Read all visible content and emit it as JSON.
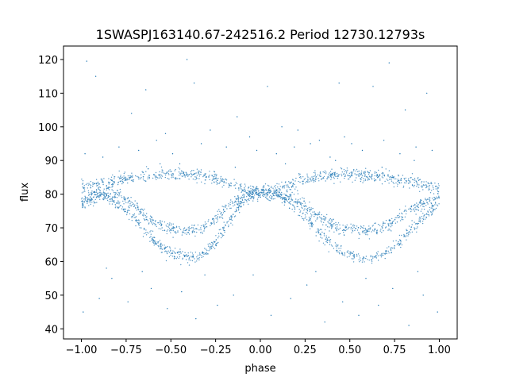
{
  "chart_data": {
    "type": "scatter",
    "title": "1SWASPJ163140.67-242516.2 Period 12730.12793s",
    "xlabel": "phase",
    "ylabel": "flux",
    "xlim": [
      -1.1,
      1.1
    ],
    "ylim": [
      37,
      124
    ],
    "xticks": [
      -1.0,
      -0.75,
      -0.5,
      -0.25,
      0.0,
      0.25,
      0.5,
      0.75,
      1.0
    ],
    "xtick_labels": [
      "−1.00",
      "−0.75",
      "−0.50",
      "−0.25",
      "0.00",
      "0.25",
      "0.50",
      "0.75",
      "1.00"
    ],
    "yticks": [
      40,
      50,
      60,
      70,
      80,
      90,
      100,
      110,
      120
    ],
    "ytick_labels": [
      "40",
      "50",
      "60",
      "70",
      "80",
      "90",
      "100",
      "110",
      "120"
    ],
    "grid": false,
    "marker_color": "#1f77b4",
    "series": [
      {
        "x": [
          -1.0,
          -0.95,
          -0.9,
          -0.85,
          -0.8,
          -0.75,
          -0.7,
          -0.65,
          -0.6,
          -0.55,
          -0.5,
          -0.45,
          -0.4,
          -0.35,
          -0.3,
          -0.25,
          -0.2,
          -0.15,
          -0.1,
          -0.05,
          0.0,
          0.05,
          0.1,
          0.15,
          0.2,
          0.25,
          0.3,
          0.35,
          0.4,
          0.45,
          0.5,
          0.55,
          0.6,
          0.65,
          0.7,
          0.75,
          0.8,
          0.85,
          0.9,
          0.95,
          1.0
        ],
        "y": [
          82,
          82.5,
          83,
          83.5,
          84,
          84.5,
          85,
          85.3,
          85.5,
          85.7,
          85.8,
          85.8,
          85.7,
          85.5,
          85.2,
          84.5,
          83.5,
          82.5,
          81.5,
          81,
          80.5,
          81,
          81.5,
          82.5,
          83.5,
          84.5,
          85.2,
          85.5,
          85.7,
          85.8,
          85.8,
          85.7,
          85.5,
          85.3,
          85,
          84.5,
          84,
          83.5,
          83,
          82.5,
          82
        ]
      },
      {
        "x": [
          -1.0,
          -0.95,
          -0.9,
          -0.85,
          -0.8,
          -0.75,
          -0.7,
          -0.65,
          -0.6,
          -0.55,
          -0.5,
          -0.45,
          -0.4,
          -0.35,
          -0.3,
          -0.25,
          -0.2,
          -0.15,
          -0.1,
          -0.05,
          0.0,
          0.05,
          0.1,
          0.15,
          0.2,
          0.25,
          0.3,
          0.35,
          0.4,
          0.45,
          0.5,
          0.55,
          0.6,
          0.65,
          0.7,
          0.75,
          0.8,
          0.85,
          0.9,
          0.95,
          1.0
        ],
        "y": [
          78,
          79,
          80.5,
          80.5,
          80,
          78.5,
          76.5,
          74,
          72,
          70.5,
          69.5,
          69,
          69,
          69.5,
          70.5,
          72.5,
          75,
          77.5,
          79.5,
          80.5,
          81,
          80.5,
          80,
          79,
          78,
          76.5,
          74.5,
          72.5,
          71,
          70,
          69.5,
          69,
          69,
          69.5,
          70.5,
          72,
          74,
          75.5,
          77,
          78,
          79
        ]
      },
      {
        "x": [
          -1.0,
          -0.95,
          -0.9,
          -0.85,
          -0.8,
          -0.75,
          -0.7,
          -0.65,
          -0.6,
          -0.55,
          -0.5,
          -0.45,
          -0.4,
          -0.35,
          -0.3,
          -0.25,
          -0.2,
          -0.15,
          -0.1,
          -0.05,
          0.0,
          0.05,
          0.1,
          0.15,
          0.2,
          0.25,
          0.3,
          0.35,
          0.4,
          0.45,
          0.5,
          0.55,
          0.6,
          0.65,
          0.7,
          0.75,
          0.8,
          0.85,
          0.9,
          0.95,
          1.0
        ],
        "y": [
          77,
          78.5,
          79.5,
          79,
          77.5,
          75,
          72.5,
          69.5,
          66.5,
          64,
          62.5,
          61.5,
          61,
          61.5,
          63,
          66,
          70,
          74,
          77.5,
          79.5,
          80.5,
          80,
          79.5,
          78,
          76,
          73.5,
          70.5,
          67.5,
          65,
          63,
          62,
          61.5,
          61,
          61.5,
          62.5,
          64.5,
          67,
          70,
          72.5,
          75,
          77
        ]
      }
    ],
    "outliers": [
      [
        -0.97,
        119.5
      ],
      [
        -0.92,
        115
      ],
      [
        -0.72,
        104
      ],
      [
        -0.64,
        111
      ],
      [
        -0.53,
        98
      ],
      [
        -0.41,
        120
      ],
      [
        -0.37,
        113
      ],
      [
        -0.28,
        99
      ],
      [
        -0.13,
        103
      ],
      [
        -0.06,
        97
      ],
      [
        0.04,
        112
      ],
      [
        0.12,
        100
      ],
      [
        0.21,
        99
      ],
      [
        0.33,
        96
      ],
      [
        0.44,
        113
      ],
      [
        0.51,
        95
      ],
      [
        0.63,
        112
      ],
      [
        0.72,
        119
      ],
      [
        0.81,
        105
      ],
      [
        0.93,
        110
      ],
      [
        -0.98,
        92
      ],
      [
        -0.88,
        91
      ],
      [
        -0.79,
        94
      ],
      [
        -0.68,
        93
      ],
      [
        -0.58,
        96
      ],
      [
        -0.49,
        92
      ],
      [
        -0.33,
        95
      ],
      [
        -0.19,
        94
      ],
      [
        -0.02,
        93
      ],
      [
        0.09,
        92
      ],
      [
        0.19,
        94
      ],
      [
        0.28,
        95
      ],
      [
        0.39,
        91
      ],
      [
        0.47,
        97
      ],
      [
        0.57,
        93
      ],
      [
        0.69,
        96
      ],
      [
        0.78,
        92
      ],
      [
        0.87,
        94
      ],
      [
        0.96,
        93
      ],
      [
        -0.99,
        45
      ],
      [
        -0.9,
        49
      ],
      [
        -0.83,
        55
      ],
      [
        -0.74,
        48
      ],
      [
        -0.61,
        52
      ],
      [
        -0.52,
        46
      ],
      [
        -0.44,
        51
      ],
      [
        -0.36,
        43
      ],
      [
        -0.24,
        47
      ],
      [
        -0.15,
        50
      ],
      [
        -0.04,
        56
      ],
      [
        0.06,
        44
      ],
      [
        0.17,
        49
      ],
      [
        0.26,
        53
      ],
      [
        0.36,
        42
      ],
      [
        0.46,
        48
      ],
      [
        0.55,
        44
      ],
      [
        0.66,
        47
      ],
      [
        0.74,
        52
      ],
      [
        0.83,
        41
      ],
      [
        0.91,
        50
      ],
      [
        0.99,
        45
      ],
      [
        -0.86,
        58
      ],
      [
        -0.66,
        57
      ],
      [
        -0.31,
        56
      ],
      [
        0.31,
        57
      ],
      [
        0.59,
        55
      ],
      [
        0.88,
        57
      ],
      [
        -0.56,
        89
      ],
      [
        0.68,
        88
      ],
      [
        -0.14,
        88
      ],
      [
        0.14,
        89
      ],
      [
        0.42,
        90
      ],
      [
        -0.45,
        89
      ],
      [
        0.86,
        90
      ]
    ]
  }
}
